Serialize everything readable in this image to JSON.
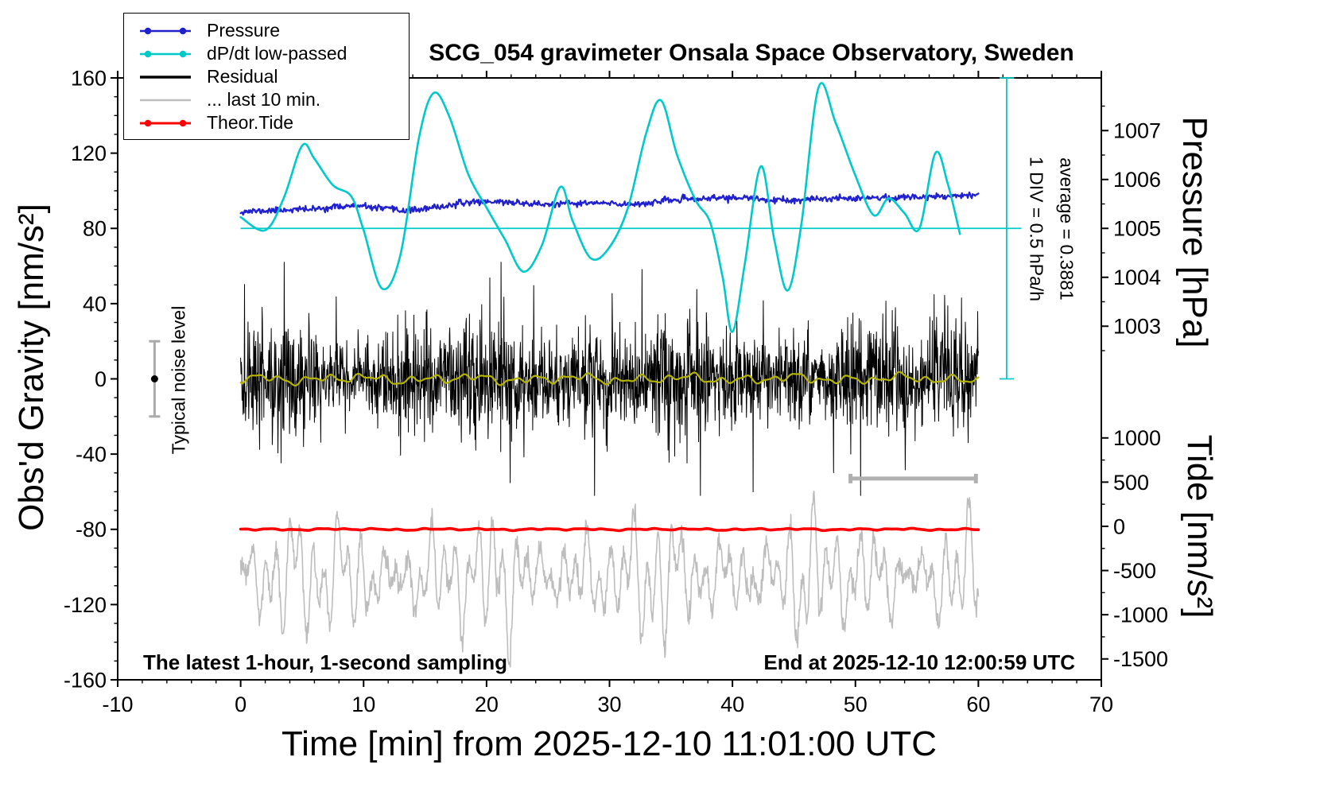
{
  "title": "SCG_054 gravimeter Onsala Space Observatory, Sweden",
  "legend": {
    "items": [
      {
        "label": "Pressure",
        "color": "#2020cc",
        "dots": true,
        "width": 2.5
      },
      {
        "label": "dP/dt low-passed",
        "color": "#00c9c9",
        "dots": true,
        "width": 2.5
      },
      {
        "label": "Residual",
        "color": "#000000",
        "dots": false,
        "width": 3.5
      },
      {
        "label": "... last 10 min.",
        "color": "#bdbdbd",
        "dots": false,
        "width": 2.5
      },
      {
        "label": "Theor.Tide",
        "color": "#ff0000",
        "dots": true,
        "width": 3
      }
    ]
  },
  "axes": {
    "xlabel": "Time [min] from 2025-12-10 11:01:00 UTC",
    "ylabel_left": "Obs'd Gravity [nm/s²]",
    "ylabel_pressure": "Pressure [hPa]",
    "ylabel_tide": "Tide [nm/s²]",
    "x_range": [
      -10,
      70
    ],
    "y_range": [
      -160,
      160
    ],
    "x_ticks": [
      -10,
      0,
      10,
      20,
      30,
      40,
      50,
      60,
      70
    ],
    "x_minor_step": 2,
    "y_ticks": [
      -160,
      -120,
      -80,
      -40,
      0,
      40,
      80,
      120,
      160
    ],
    "y_minor_step": 10,
    "pressure_ticks": [
      1007,
      1006,
      1005,
      1004,
      1003
    ],
    "pressure_minor_step": 0.5,
    "pressure_cal": {
      "hpa": 1005,
      "gravity": 80,
      "gravity_per_hpa": 26
    },
    "tide_ticks": [
      1000,
      500,
      0,
      -500,
      -1000,
      -1500
    ],
    "tide_minor_step": 250,
    "tide_cal": {
      "tide": 0,
      "gravity": -78.4,
      "gravity_per_1000": 47
    }
  },
  "annotations": {
    "div_label": "1 DIV = 0.5 hPa/h",
    "average_label": "average = 0.3881",
    "noise_label": "Typical noise level",
    "sampling_note": "The latest 1-hour, 1-second sampling",
    "end_note": "End at 2025-12-10 12:00:59 UTC"
  },
  "chart_data": {
    "type": "line",
    "x_units": "minutes from 2025-12-10 11:01:00 UTC",
    "y_units": "left axis gravity nm/s2",
    "pressure_interpretation": "gravity 80 = 1005.0 hPa, 26 gravity units per hPa; blue trace rises from ~1005.35 to ~1005.70 hPa",
    "series": [
      {
        "name": "pressure",
        "color": "#2020cc",
        "width": 2.2,
        "kind": "noisy_line",
        "seed": 11,
        "noise": 0.8,
        "samples": 900,
        "points": [
          [
            0,
            89
          ],
          [
            2,
            89.3
          ],
          [
            4,
            90
          ],
          [
            6,
            90.2
          ],
          [
            8,
            91.6
          ],
          [
            9,
            92
          ],
          [
            11,
            91
          ],
          [
            13,
            89.5
          ],
          [
            15,
            90.2
          ],
          [
            17,
            92.3
          ],
          [
            19,
            94.3
          ],
          [
            21,
            94.2
          ],
          [
            23,
            93.4
          ],
          [
            25,
            92.6
          ],
          [
            27,
            93.2
          ],
          [
            29,
            93.5
          ],
          [
            31,
            92.8
          ],
          [
            33,
            93.4
          ],
          [
            35,
            95
          ],
          [
            37,
            95.6
          ],
          [
            39,
            96.3
          ],
          [
            41,
            96.2
          ],
          [
            43,
            95
          ],
          [
            45,
            94.6
          ],
          [
            47,
            95.6
          ],
          [
            49,
            96.2
          ],
          [
            51,
            96.4
          ],
          [
            53,
            96.2
          ],
          [
            55,
            96.8
          ],
          [
            57,
            97.2
          ],
          [
            59,
            97.8
          ],
          [
            60,
            98.2
          ]
        ]
      },
      {
        "name": "dpdt_lowpassed",
        "color": "#00c9c9",
        "width": 2.6,
        "kind": "spline",
        "points": [
          [
            0,
            86
          ],
          [
            2,
            79
          ],
          [
            3.5,
            96
          ],
          [
            5,
            124
          ],
          [
            6,
            117
          ],
          [
            7.5,
            103
          ],
          [
            9,
            97
          ],
          [
            10,
            79
          ],
          [
            11.5,
            48
          ],
          [
            13,
            66
          ],
          [
            14.5,
            128
          ],
          [
            15.7,
            152
          ],
          [
            17,
            139
          ],
          [
            18.5,
            109
          ],
          [
            20,
            91
          ],
          [
            21.5,
            74
          ],
          [
            23,
            57
          ],
          [
            24.5,
            71
          ],
          [
            26,
            102
          ],
          [
            27,
            84
          ],
          [
            28.5,
            64
          ],
          [
            30,
            70
          ],
          [
            31.5,
            91
          ],
          [
            33,
            131
          ],
          [
            34.2,
            148
          ],
          [
            35.5,
            119
          ],
          [
            37,
            95
          ],
          [
            38.2,
            83
          ],
          [
            39.2,
            54
          ],
          [
            40,
            25
          ],
          [
            41,
            61
          ],
          [
            42.3,
            113
          ],
          [
            43.4,
            74
          ],
          [
            44.5,
            47
          ],
          [
            45.6,
            82
          ],
          [
            47,
            155
          ],
          [
            48.4,
            136
          ],
          [
            50,
            108
          ],
          [
            51.5,
            87
          ],
          [
            52.7,
            96
          ],
          [
            54,
            88
          ],
          [
            55.2,
            80
          ],
          [
            56.5,
            120
          ],
          [
            57.5,
            104
          ],
          [
            58.5,
            77
          ]
        ]
      },
      {
        "name": "dpdt_zero_line",
        "color": "#00c9c9",
        "width": 1.8,
        "kind": "hline",
        "y": 80,
        "x0": 0,
        "x1": 63.5
      },
      {
        "name": "last10_residual",
        "color": "#bdbdbd",
        "width": 1.6,
        "kind": "oscillation",
        "seed": 9,
        "center": -105,
        "samples": 1500,
        "x0": 0,
        "x1": 60,
        "clip_lo": -157,
        "clip_hi": -53
      },
      {
        "name": "residual",
        "color": "#000000",
        "width": 1,
        "kind": "noise_band",
        "seed": 3,
        "center": 0,
        "sigma": 13,
        "spike_prob": 0.05,
        "spike_scale": 2.3,
        "clip": 62,
        "samples": 2100,
        "x0": 0,
        "x1": 60
      },
      {
        "name": "residual_lowpassed",
        "color": "#b4b400",
        "width": 2.2,
        "kind": "smooth_noise",
        "seed": 5,
        "center": 0,
        "amp": 2.6,
        "samples": 500,
        "x0": 0,
        "x1": 60
      },
      {
        "name": "theor_tide",
        "color": "#ff0000",
        "width": 3.6,
        "kind": "smooth_noise",
        "seed": 8,
        "center": -80,
        "amp": 0.5,
        "samples": 300,
        "x0": 0,
        "x1": 60
      }
    ],
    "markers": {
      "noise_errorbar": {
        "x": -7,
        "y0": -20,
        "y1": 20,
        "cap": 7,
        "color": "#aaaaaa",
        "dot_color": "#000000",
        "dot_y": 0
      },
      "last10_bar": {
        "x0": 49.6,
        "x1": 59.8,
        "y": -53,
        "cap": 6,
        "color": "#b0b0b0",
        "width": 5
      },
      "div_scale": {
        "x": 62.3,
        "y0": 0,
        "y1": 160,
        "cap": 9,
        "color": "#00c9c9",
        "width": 1.8
      }
    }
  }
}
